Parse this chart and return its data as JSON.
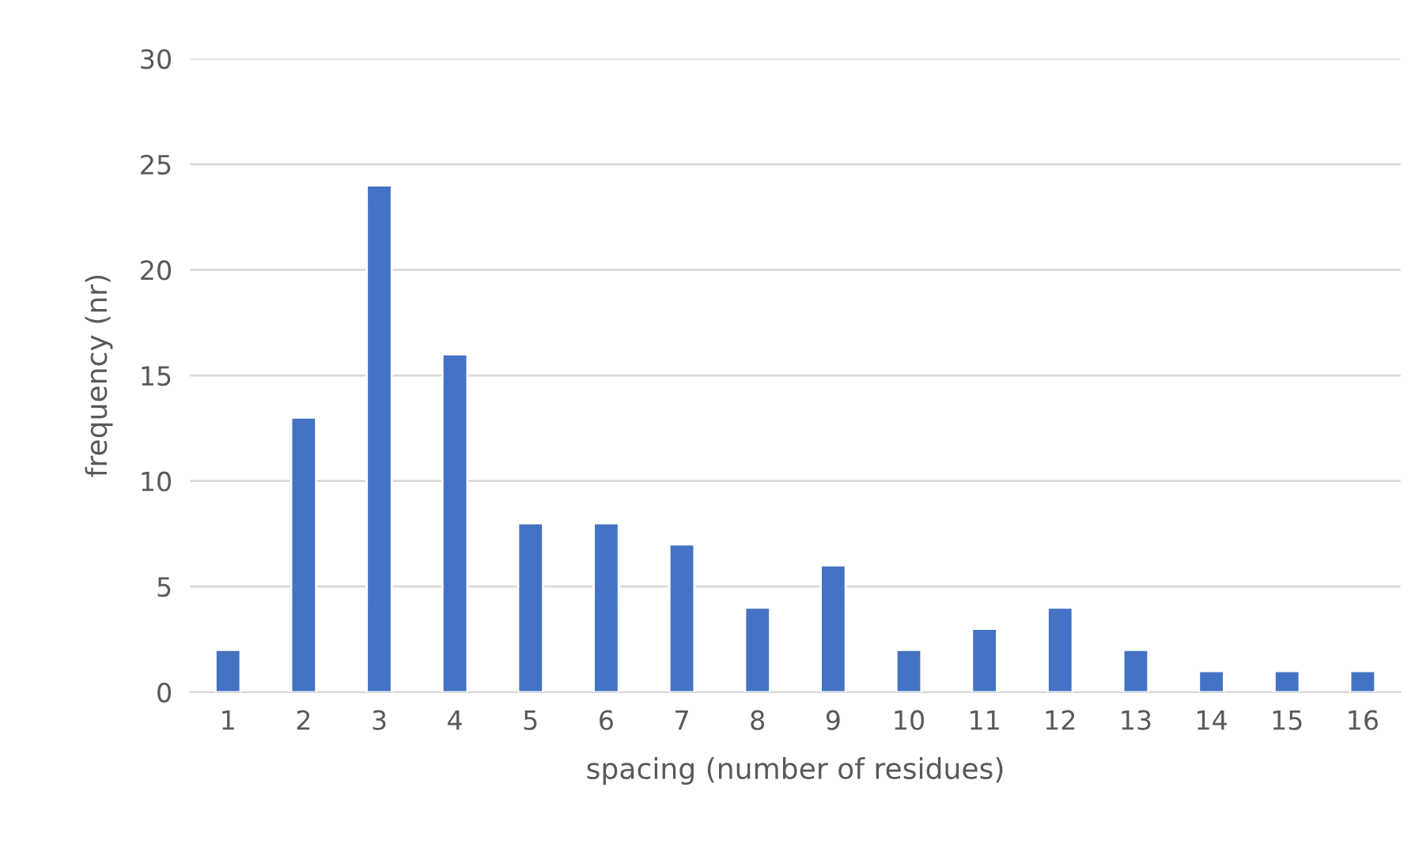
{
  "chart_data": {
    "type": "bar",
    "xlabel": "spacing (number of residues)",
    "ylabel": "frequency (nr)",
    "categories": [
      "1",
      "2",
      "3",
      "4",
      "5",
      "6",
      "7",
      "8",
      "9",
      "10",
      "11",
      "12",
      "13",
      "14",
      "15",
      "16"
    ],
    "values": [
      2,
      13,
      24,
      16,
      8,
      8,
      7,
      4,
      6,
      2,
      3,
      4,
      2,
      1,
      1,
      1
    ],
    "color": "#4472c4",
    "ylim": [
      0,
      30
    ],
    "yticks": [
      0,
      5,
      10,
      15,
      20,
      25,
      30
    ],
    "grid": "y"
  }
}
